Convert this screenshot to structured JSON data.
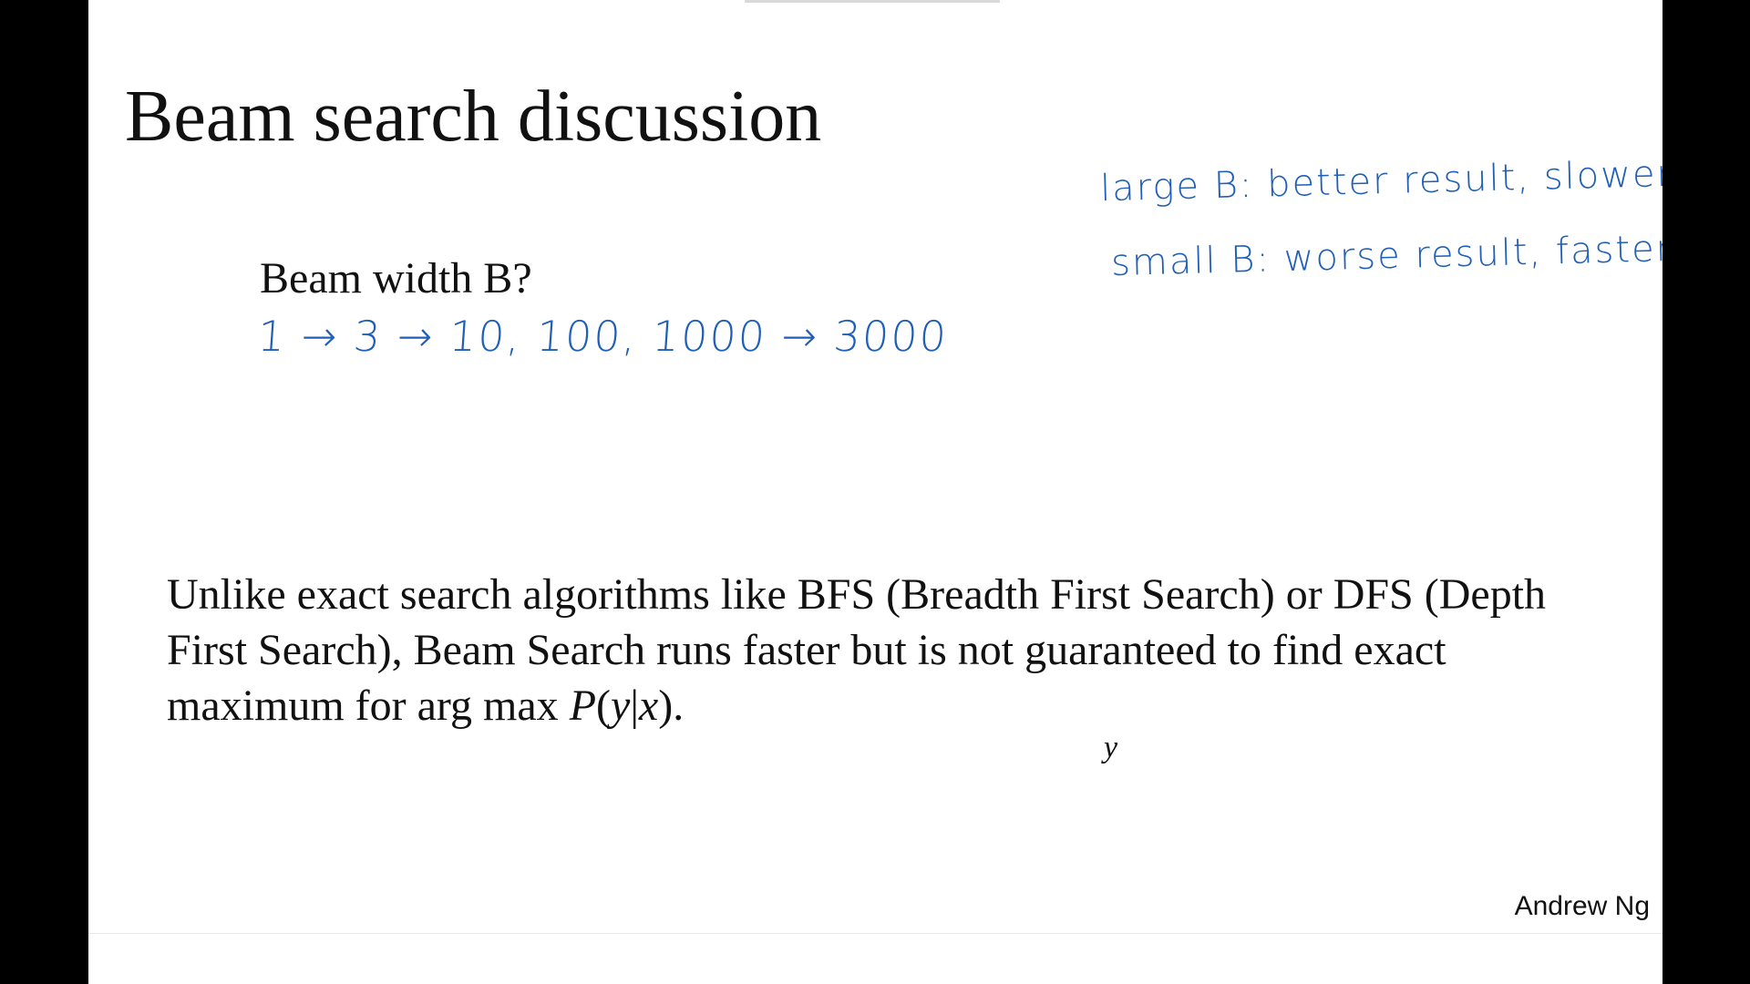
{
  "slide": {
    "title": "Beam search discussion",
    "question": "Beam width B?",
    "body": {
      "text": "Unlike exact search algorithms like BFS (Breadth First Search) or DFS (Depth First Search), Beam Search runs faster but is not guaranteed to find exact maximum for arg max",
      "math_P": "P",
      "math_open": "(",
      "math_y": "y",
      "math_bar": "|",
      "math_x": "x",
      "math_close": ").",
      "argmax_subscript": "y"
    },
    "author": "Andrew Ng"
  },
  "handwriting": {
    "sequence": "1 → 3 → 10,     100,       1000 → 3000",
    "large_b": "large B:  better result, slower",
    "small_b": "small B:  worse result, faster",
    "ink_color": "#1f5fb8"
  }
}
